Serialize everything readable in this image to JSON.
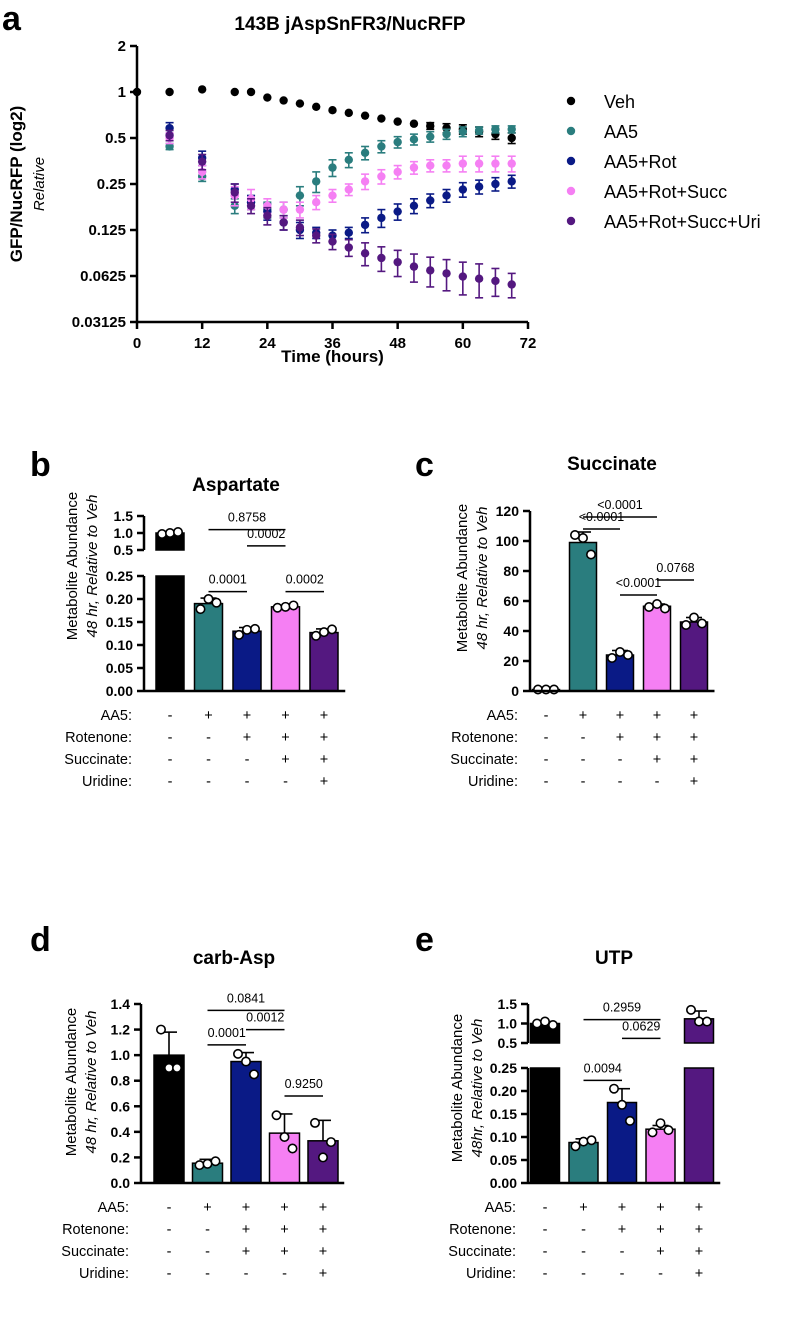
{
  "colors": {
    "veh": "#000000",
    "aa5": "#2a7d7e",
    "rot": "#0a1a86",
    "succ": "#f57ff3",
    "uri": "#541880"
  },
  "chart_data": [
    {
      "panel": "a",
      "type": "scatter",
      "title": "143B jAspSnFR3/NucRFP",
      "xlabel": "Time (hours)",
      "ylabel": "GFP/NucRFP (log2)",
      "ylabel2": "Relative",
      "yscale": "log2",
      "xlim": [
        0,
        72
      ],
      "ylim": [
        0.03125,
        2
      ],
      "xticks": [
        "0",
        "12",
        "24",
        "36",
        "48",
        "60",
        "72"
      ],
      "yticks": [
        "2",
        "1",
        "0.5",
        "0.25",
        "0.125",
        "0.0625",
        "0.03125"
      ],
      "series": [
        {
          "name": "Veh",
          "color": "veh",
          "x": [
            0,
            6,
            12,
            18,
            21,
            24,
            27,
            30,
            33,
            36,
            39,
            42,
            45,
            48,
            51,
            54,
            57,
            60,
            63,
            66,
            69
          ],
          "y": [
            1.0,
            1.0,
            1.04,
            1.0,
            1.0,
            0.92,
            0.88,
            0.84,
            0.8,
            0.76,
            0.73,
            0.7,
            0.67,
            0.64,
            0.62,
            0.6,
            0.58,
            0.57,
            0.55,
            0.53,
            0.5
          ],
          "err": [
            0,
            0,
            0,
            0,
            0,
            0,
            0,
            0,
            0,
            0,
            0,
            0,
            0,
            0,
            0,
            0.03,
            0.04,
            0.04,
            0.04,
            0.04,
            0.04
          ]
        },
        {
          "name": "AA5",
          "color": "aa5",
          "x": [
            6,
            12,
            18,
            21,
            24,
            27,
            30,
            33,
            36,
            39,
            42,
            45,
            48,
            51,
            54,
            57,
            60,
            63,
            66,
            69
          ],
          "y": [
            0.44,
            0.28,
            0.18,
            0.19,
            0.17,
            0.17,
            0.21,
            0.26,
            0.32,
            0.36,
            0.4,
            0.44,
            0.47,
            0.49,
            0.51,
            0.53,
            0.55,
            0.56,
            0.57,
            0.57
          ],
          "err": [
            0.02,
            0.02,
            0.02,
            0.02,
            0.02,
            0.02,
            0.03,
            0.04,
            0.04,
            0.04,
            0.04,
            0.04,
            0.04,
            0.04,
            0.04,
            0.04,
            0.04,
            0.03,
            0.03,
            0.03
          ]
        },
        {
          "name": "AA5+Rot",
          "color": "rot",
          "x": [
            6,
            12,
            18,
            21,
            24,
            27,
            30,
            33,
            36,
            39,
            42,
            45,
            48,
            51,
            54,
            57,
            60,
            63,
            66,
            69
          ],
          "y": [
            0.58,
            0.37,
            0.23,
            0.19,
            0.165,
            0.14,
            0.125,
            0.12,
            0.115,
            0.12,
            0.135,
            0.15,
            0.165,
            0.18,
            0.195,
            0.21,
            0.23,
            0.24,
            0.25,
            0.26
          ],
          "err": [
            0.05,
            0.04,
            0.02,
            0.02,
            0.02,
            0.015,
            0.015,
            0.01,
            0.01,
            0.01,
            0.015,
            0.02,
            0.02,
            0.02,
            0.02,
            0.02,
            0.025,
            0.025,
            0.025,
            0.025
          ]
        },
        {
          "name": "AA5+Rot+Succ",
          "color": "succ",
          "x": [
            6,
            12,
            18,
            21,
            24,
            27,
            30,
            33,
            36,
            39,
            42,
            45,
            48,
            51,
            54,
            57,
            60,
            63,
            66,
            69
          ],
          "y": [
            0.5,
            0.3,
            0.21,
            0.2,
            0.18,
            0.17,
            0.17,
            0.19,
            0.21,
            0.23,
            0.26,
            0.28,
            0.3,
            0.32,
            0.33,
            0.33,
            0.34,
            0.34,
            0.34,
            0.34
          ],
          "err": [
            0.04,
            0.03,
            0.03,
            0.03,
            0.02,
            0.02,
            0.02,
            0.02,
            0.02,
            0.02,
            0.03,
            0.03,
            0.03,
            0.03,
            0.03,
            0.03,
            0.04,
            0.04,
            0.04,
            0.04
          ]
        },
        {
          "name": "AA5+Rot+Succ+Uri",
          "color": "uri",
          "x": [
            6,
            12,
            18,
            21,
            24,
            27,
            30,
            33,
            36,
            39,
            42,
            45,
            48,
            51,
            54,
            57,
            60,
            63,
            66,
            69
          ],
          "y": [
            0.52,
            0.35,
            0.22,
            0.18,
            0.155,
            0.14,
            0.13,
            0.115,
            0.105,
            0.096,
            0.088,
            0.082,
            0.077,
            0.072,
            0.068,
            0.065,
            0.062,
            0.06,
            0.058,
            0.055
          ],
          "err": [
            0.04,
            0.04,
            0.03,
            0.02,
            0.02,
            0.015,
            0.015,
            0.012,
            0.012,
            0.012,
            0.015,
            0.015,
            0.015,
            0.015,
            0.015,
            0.015,
            0.015,
            0.015,
            0.012,
            0.01
          ]
        }
      ]
    },
    {
      "panel": "b",
      "type": "bar",
      "title": "Aspartate",
      "ylabel": "Metabolite Abundance",
      "ylabel2": "48 hr, Relative to Veh",
      "broken_axis": true,
      "upper_ylim": [
        0.5,
        1.5
      ],
      "lower_ylim": [
        0,
        0.25
      ],
      "upper_yticks": [
        "1.5",
        "1.0",
        "0.5"
      ],
      "lower_yticks": [
        "0.25",
        "0.20",
        "0.15",
        "0.10",
        "0.05",
        "0.00"
      ],
      "bar_colors": [
        "veh",
        "aa5",
        "rot",
        "succ",
        "uri"
      ],
      "values": [
        1.0,
        0.19,
        0.13,
        0.183,
        0.127
      ],
      "sd": [
        0.05,
        0.012,
        0.008,
        0.003,
        0.008
      ],
      "points": [
        [
          0.97,
          1.0,
          1.03
        ],
        [
          0.178,
          0.2,
          0.192
        ],
        [
          0.122,
          0.133,
          0.135
        ],
        [
          0.181,
          0.183,
          0.186
        ],
        [
          0.12,
          0.128,
          0.134
        ]
      ],
      "comparisons": [
        {
          "from": 1,
          "to": 3,
          "label": "0.8758",
          "y": 1.1
        },
        {
          "from": 2,
          "to": 3,
          "label": "0.0002",
          "y": 0.62
        },
        {
          "from": 1,
          "to": 2,
          "label": "0.0001",
          "y": 0.216
        },
        {
          "from": 3,
          "to": 4,
          "label": "0.0002",
          "y": 0.216
        }
      ],
      "conditions": [
        {
          "label": "AA5:",
          "signs": [
            "-",
            "+",
            "+",
            "+",
            "+"
          ]
        },
        {
          "label": "Rotenone:",
          "signs": [
            "-",
            "-",
            "+",
            "+",
            "+"
          ]
        },
        {
          "label": "Succinate:",
          "signs": [
            "-",
            "-",
            "-",
            "+",
            "+"
          ]
        },
        {
          "label": "Uridine:",
          "signs": [
            "-",
            "-",
            "-",
            "-",
            "+"
          ]
        }
      ]
    },
    {
      "panel": "c",
      "type": "bar",
      "title": "Succinate",
      "ylabel": "Metabolite Abundance",
      "ylabel2": "48 hr, Relative to Veh",
      "ylim": [
        0,
        120
      ],
      "yticks": [
        "120",
        "100",
        "80",
        "60",
        "40",
        "20",
        "0"
      ],
      "bar_colors": [
        "veh",
        "aa5",
        "rot",
        "succ",
        "uri"
      ],
      "values": [
        1,
        99,
        24,
        56.5,
        46
      ],
      "sd": [
        0.3,
        7,
        3,
        1.5,
        3
      ],
      "points": [
        [
          1,
          1,
          1
        ],
        [
          104,
          102,
          91
        ],
        [
          22,
          26,
          24
        ],
        [
          56,
          58,
          55
        ],
        [
          44,
          49,
          45
        ]
      ],
      "comparisons": [
        {
          "from": 1,
          "to": 3,
          "label": "<0.0001",
          "y": 116
        },
        {
          "from": 1,
          "to": 2,
          "label": "<0.0001",
          "y": 108
        },
        {
          "from": 3,
          "to": 4,
          "label": "0.0768",
          "y": 74
        },
        {
          "from": 2,
          "to": 3,
          "label": "<0.0001",
          "y": 64
        }
      ],
      "conditions": [
        {
          "label": "AA5:",
          "signs": [
            "-",
            "+",
            "+",
            "+",
            "+"
          ]
        },
        {
          "label": "Rotenone:",
          "signs": [
            "-",
            "-",
            "+",
            "+",
            "+"
          ]
        },
        {
          "label": "Succinate:",
          "signs": [
            "-",
            "-",
            "-",
            "+",
            "+"
          ]
        },
        {
          "label": "Uridine:",
          "signs": [
            "-",
            "-",
            "-",
            "-",
            "+"
          ]
        }
      ]
    },
    {
      "panel": "d",
      "type": "bar",
      "title": "carb-Asp",
      "ylabel": "Metabolite Abundance",
      "ylabel2": "48 hr, Relative to Veh",
      "ylim": [
        0,
        1.4
      ],
      "yticks": [
        "1.4",
        "1.2",
        "1.0",
        "0.8",
        "0.6",
        "0.4",
        "0.2",
        "0.0"
      ],
      "bar_colors": [
        "veh",
        "aa5",
        "rot",
        "succ",
        "uri"
      ],
      "values": [
        1.0,
        0.155,
        0.95,
        0.39,
        0.33
      ],
      "sd": [
        0.18,
        0.03,
        0.07,
        0.15,
        0.16
      ],
      "points": [
        [
          1.2,
          0.9,
          0.9
        ],
        [
          0.14,
          0.15,
          0.17
        ],
        [
          1.01,
          0.95,
          0.85
        ],
        [
          0.53,
          0.36,
          0.27
        ],
        [
          0.47,
          0.2,
          0.32
        ]
      ],
      "comparisons": [
        {
          "from": 1,
          "to": 3,
          "label": "0.0841",
          "y": 1.35
        },
        {
          "from": 2,
          "to": 3,
          "label": "0.0012",
          "y": 1.2
        },
        {
          "from": 1,
          "to": 2,
          "label": "0.0001",
          "y": 1.08
        },
        {
          "from": 3,
          "to": 4,
          "label": "0.9250",
          "y": 0.68
        }
      ],
      "conditions": [
        {
          "label": "AA5:",
          "signs": [
            "-",
            "+",
            "+",
            "+",
            "+"
          ]
        },
        {
          "label": "Rotenone:",
          "signs": [
            "-",
            "-",
            "+",
            "+",
            "+"
          ]
        },
        {
          "label": "Succinate:",
          "signs": [
            "-",
            "-",
            "+",
            "+",
            "+"
          ]
        },
        {
          "label": "Uridine:",
          "signs": [
            "-",
            "-",
            "-",
            "-",
            "+"
          ]
        }
      ]
    },
    {
      "panel": "e",
      "type": "bar",
      "title": "UTP",
      "ylabel": "Metabolite Abundance",
      "ylabel2": "48hr, Relative to Veh",
      "broken_axis": true,
      "upper_ylim": [
        0.5,
        1.5
      ],
      "lower_ylim": [
        0,
        0.25
      ],
      "upper_yticks": [
        "1.5",
        "1.0",
        "0.5"
      ],
      "lower_yticks": [
        "0.25",
        "0.20",
        "0.15",
        "0.10",
        "0.05",
        "0.00"
      ],
      "bar_colors": [
        "veh",
        "aa5",
        "rot",
        "succ",
        "uri"
      ],
      "values": [
        1.0,
        0.088,
        0.175,
        0.117,
        1.12
      ],
      "sd": [
        0.05,
        0.008,
        0.03,
        0.008,
        0.2
      ],
      "points": [
        [
          1.0,
          1.05,
          0.96
        ],
        [
          0.08,
          0.09,
          0.093
        ],
        [
          0.205,
          0.17,
          0.135
        ],
        [
          0.11,
          0.13,
          0.115
        ],
        [
          1.35,
          1.05,
          1.05
        ]
      ],
      "comparisons": [
        {
          "from": 1,
          "to": 3,
          "label": "0.2959",
          "y": 1.1
        },
        {
          "from": 2,
          "to": 3,
          "label": "0.0629",
          "y": 0.62
        },
        {
          "from": 1,
          "to": 2,
          "label": "0.0094",
          "y": 0.223
        }
      ],
      "conditions": [
        {
          "label": "AA5:",
          "signs": [
            "-",
            "+",
            "+",
            "+",
            "+"
          ]
        },
        {
          "label": "Rotenone:",
          "signs": [
            "-",
            "-",
            "+",
            "+",
            "+"
          ]
        },
        {
          "label": "Succinate:",
          "signs": [
            "-",
            "-",
            "-",
            "+",
            "+"
          ]
        },
        {
          "label": "Uridine:",
          "signs": [
            "-",
            "-",
            "-",
            "-",
            "+"
          ]
        }
      ]
    }
  ]
}
